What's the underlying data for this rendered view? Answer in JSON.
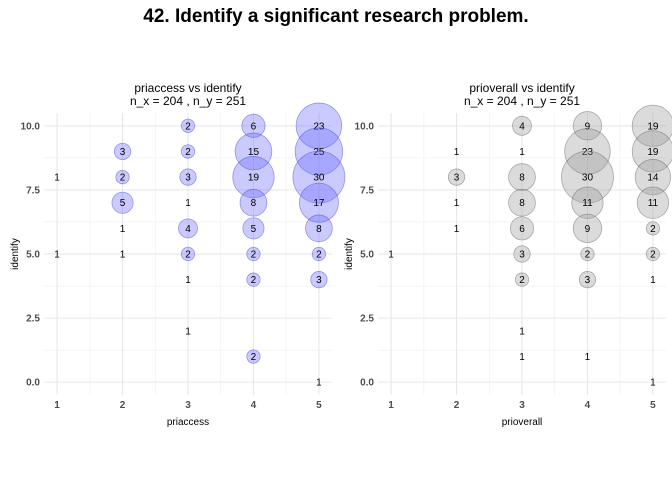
{
  "figure": {
    "title": "42. Identify a significant research problem."
  },
  "chart_data": [
    {
      "type": "scatter",
      "title": "priaccess vs identify",
      "subtitle": "n_x = 204 , n_y = 251",
      "xlabel": "priaccess",
      "ylabel": "identify",
      "xlim": [
        0.8,
        5.2
      ],
      "ylim": [
        -0.5,
        10.5
      ],
      "x_ticks": [
        1,
        2,
        3,
        4,
        5
      ],
      "y_ticks": [
        0.0,
        2.5,
        5.0,
        7.5,
        10.0
      ],
      "y_tick_labels": [
        "0.0",
        "2.5",
        "5.0",
        "7.5",
        "10.0"
      ],
      "fill_color": "#6666ff",
      "stroke_color": "#3333cc",
      "points": [
        {
          "x": 1,
          "y": 8,
          "n": 1
        },
        {
          "x": 1,
          "y": 5,
          "n": 1
        },
        {
          "x": 2,
          "y": 9,
          "n": 3
        },
        {
          "x": 2,
          "y": 8,
          "n": 2
        },
        {
          "x": 2,
          "y": 7,
          "n": 5
        },
        {
          "x": 2,
          "y": 6,
          "n": 1
        },
        {
          "x": 2,
          "y": 5,
          "n": 1
        },
        {
          "x": 3,
          "y": 10,
          "n": 2
        },
        {
          "x": 3,
          "y": 9,
          "n": 2
        },
        {
          "x": 3,
          "y": 8,
          "n": 3
        },
        {
          "x": 3,
          "y": 7,
          "n": 1
        },
        {
          "x": 3,
          "y": 6,
          "n": 4
        },
        {
          "x": 3,
          "y": 5,
          "n": 2
        },
        {
          "x": 3,
          "y": 4,
          "n": 1
        },
        {
          "x": 3,
          "y": 2,
          "n": 1
        },
        {
          "x": 4,
          "y": 10,
          "n": 6
        },
        {
          "x": 4,
          "y": 9,
          "n": 15
        },
        {
          "x": 4,
          "y": 8,
          "n": 19
        },
        {
          "x": 4,
          "y": 7,
          "n": 8
        },
        {
          "x": 4,
          "y": 6,
          "n": 5
        },
        {
          "x": 4,
          "y": 5,
          "n": 2
        },
        {
          "x": 4,
          "y": 4,
          "n": 2
        },
        {
          "x": 4,
          "y": 1,
          "n": 2
        },
        {
          "x": 5,
          "y": 10,
          "n": 23
        },
        {
          "x": 5,
          "y": 9,
          "n": 25
        },
        {
          "x": 5,
          "y": 8,
          "n": 30
        },
        {
          "x": 5,
          "y": 7,
          "n": 17
        },
        {
          "x": 5,
          "y": 6,
          "n": 8
        },
        {
          "x": 5,
          "y": 5,
          "n": 2
        },
        {
          "x": 5,
          "y": 4,
          "n": 3
        },
        {
          "x": 5,
          "y": 0,
          "n": 1
        }
      ]
    },
    {
      "type": "scatter",
      "title": "prioverall vs identify",
      "subtitle": "n_x = 204 , n_y = 251",
      "xlabel": "prioverall",
      "ylabel": "identify",
      "xlim": [
        0.8,
        5.2
      ],
      "ylim": [
        -0.5,
        10.5
      ],
      "x_ticks": [
        1,
        2,
        3,
        4,
        5
      ],
      "y_ticks": [
        0.0,
        2.5,
        5.0,
        7.5,
        10.0
      ],
      "y_tick_labels": [
        "0.0",
        "2.5",
        "5.0",
        "7.5",
        "10.0"
      ],
      "fill_color": "#999999",
      "stroke_color": "#555555",
      "points": [
        {
          "x": 1,
          "y": 5,
          "n": 1
        },
        {
          "x": 2,
          "y": 9,
          "n": 1
        },
        {
          "x": 2,
          "y": 8,
          "n": 3
        },
        {
          "x": 2,
          "y": 7,
          "n": 1
        },
        {
          "x": 2,
          "y": 6,
          "n": 1
        },
        {
          "x": 3,
          "y": 10,
          "n": 4
        },
        {
          "x": 3,
          "y": 9,
          "n": 1
        },
        {
          "x": 3,
          "y": 8,
          "n": 8
        },
        {
          "x": 3,
          "y": 7,
          "n": 8
        },
        {
          "x": 3,
          "y": 6,
          "n": 6
        },
        {
          "x": 3,
          "y": 5,
          "n": 3
        },
        {
          "x": 3,
          "y": 4,
          "n": 2
        },
        {
          "x": 3,
          "y": 2,
          "n": 1
        },
        {
          "x": 3,
          "y": 1,
          "n": 1
        },
        {
          "x": 4,
          "y": 10,
          "n": 9
        },
        {
          "x": 4,
          "y": 9,
          "n": 23
        },
        {
          "x": 4,
          "y": 8,
          "n": 30
        },
        {
          "x": 4,
          "y": 7,
          "n": 11
        },
        {
          "x": 4,
          "y": 6,
          "n": 9
        },
        {
          "x": 4,
          "y": 5,
          "n": 2
        },
        {
          "x": 4,
          "y": 4,
          "n": 3
        },
        {
          "x": 4,
          "y": 1,
          "n": 1
        },
        {
          "x": 5,
          "y": 10,
          "n": 19
        },
        {
          "x": 5,
          "y": 9,
          "n": 19
        },
        {
          "x": 5,
          "y": 8,
          "n": 14
        },
        {
          "x": 5,
          "y": 7,
          "n": 11
        },
        {
          "x": 5,
          "y": 6,
          "n": 2
        },
        {
          "x": 5,
          "y": 5,
          "n": 2
        },
        {
          "x": 5,
          "y": 4,
          "n": 1
        },
        {
          "x": 5,
          "y": 0,
          "n": 1
        }
      ]
    }
  ]
}
